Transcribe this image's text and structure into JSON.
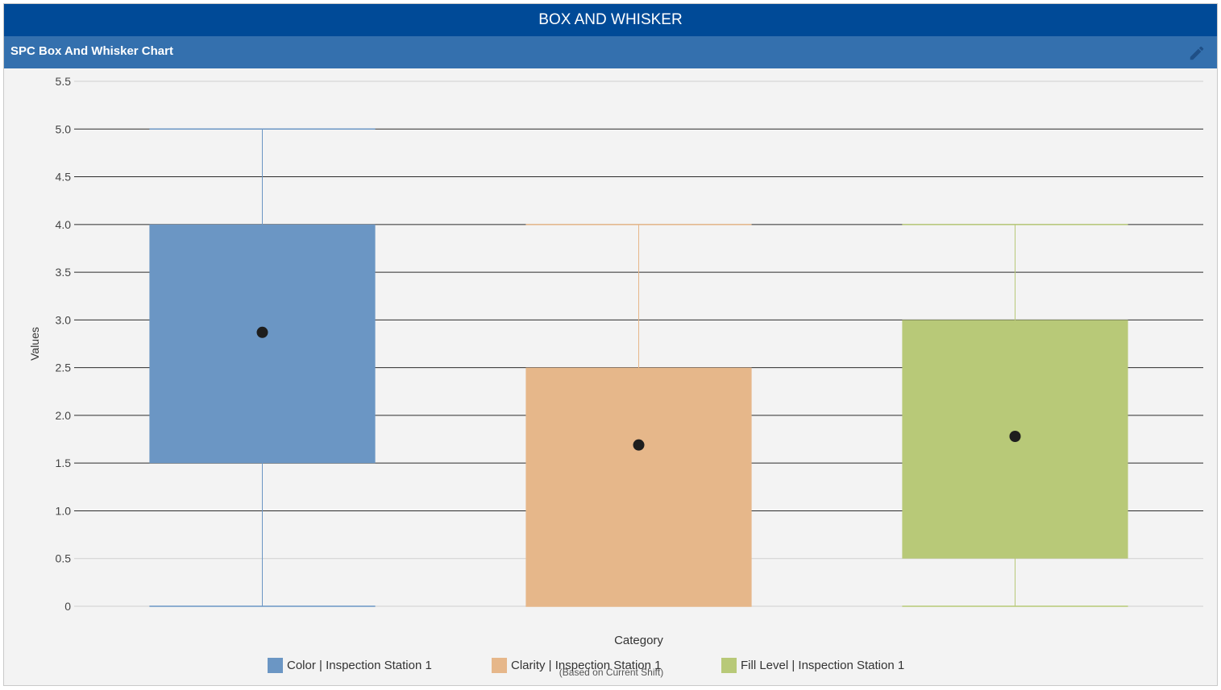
{
  "header": {
    "title": "BOX AND WHISKER"
  },
  "panel": {
    "title": "SPC Box And Whisker Chart",
    "edit_icon": "pencil-icon"
  },
  "chart_data": {
    "type": "boxplot",
    "xlabel": "Category",
    "ylabel": "Values",
    "ylim": [
      0,
      5.5
    ],
    "yticks": [
      0,
      0.5,
      1.0,
      1.5,
      2.0,
      2.5,
      3.0,
      3.5,
      4.0,
      4.5,
      5.0,
      5.5
    ],
    "ytick_labels": [
      "0",
      "0.5",
      "1.0",
      "1.5",
      "2.0",
      "2.5",
      "3.0",
      "3.5",
      "4.0",
      "4.5",
      "5.0",
      "5.5"
    ],
    "series": [
      {
        "name": "Color | Inspection Station 1",
        "color": "#6b96c4",
        "min": 0,
        "q1": 1.5,
        "q3": 4.0,
        "max": 5.0,
        "mean": 2.87
      },
      {
        "name": "Clarity | Inspection Station 1",
        "color": "#e6b78a",
        "min": 0,
        "q1": 0,
        "q3": 2.5,
        "max": 4.0,
        "mean": 1.69
      },
      {
        "name": "Fill Level | Inspection Station 1",
        "color": "#b8c978",
        "min": 0,
        "q1": 0.5,
        "q3": 3.0,
        "max": 4.0,
        "mean": 1.78
      }
    ],
    "footnote": "(Based on Current Shift)"
  }
}
